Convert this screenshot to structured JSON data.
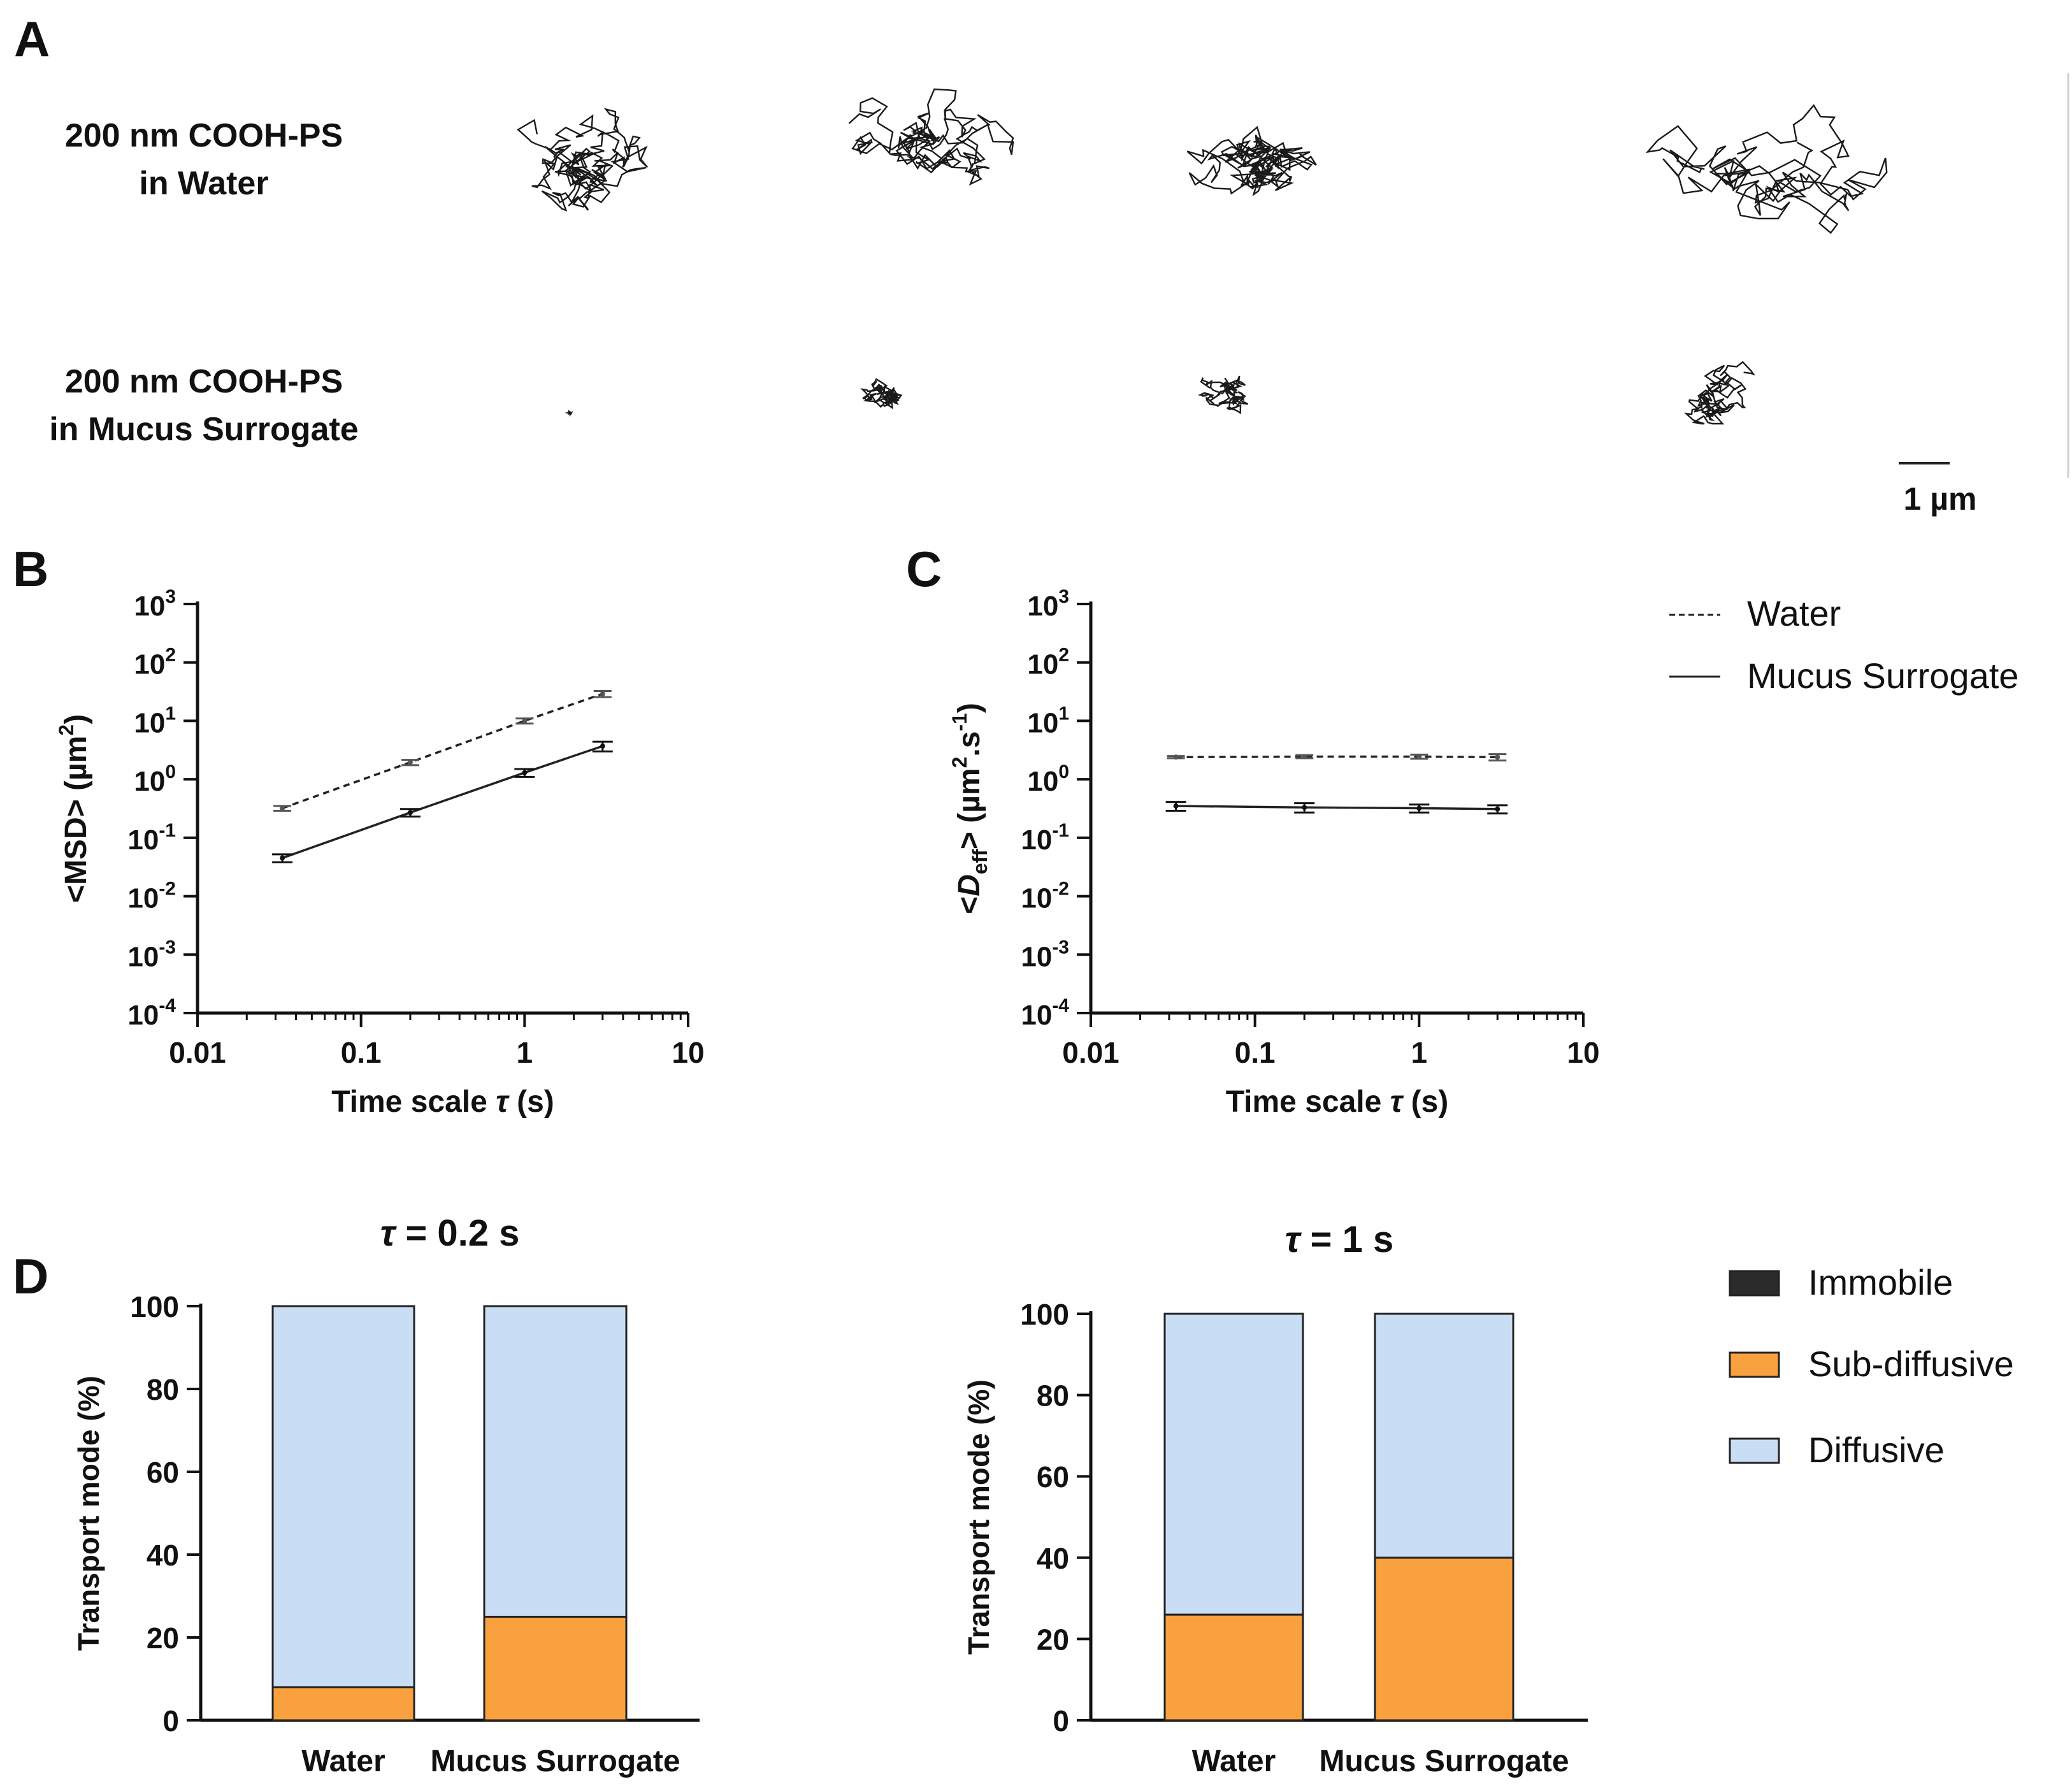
{
  "panel_letters": {
    "a": "A",
    "b": "B",
    "c": "C",
    "d": "D"
  },
  "panel_a": {
    "row1_line1": "200 nm COOH-PS",
    "row1_line2": "in Water",
    "row2_line1": "200 nm COOH-PS",
    "row2_line2": "in Mucus Surrogate",
    "scalebar_label": "1 µm"
  },
  "legend_lines": {
    "water": "Water",
    "mucus": "Mucus Surrogate"
  },
  "legend_bars": {
    "immobile": "Immobile",
    "subdiffusive": "Sub-diffusive",
    "diffusive": "Diffusive"
  },
  "colors": {
    "immobile": "#2b2b2b",
    "subdiffusive": "#f9a03f",
    "diffusive": "#c9ddf5",
    "line": "#222222"
  },
  "chart_data": [
    {
      "id": "B",
      "type": "line",
      "xscale": "log",
      "yscale": "log",
      "xlim": [
        0.01,
        10
      ],
      "ylim": [
        0.0001,
        1000
      ],
      "xticks": [
        "0.01",
        "0.1",
        "1",
        "10"
      ],
      "yticks": [
        {
          "base": "10",
          "exp": "-4"
        },
        {
          "base": "10",
          "exp": "-3"
        },
        {
          "base": "10",
          "exp": "-2"
        },
        {
          "base": "10",
          "exp": "-1"
        },
        {
          "base": "10",
          "exp": "0"
        },
        {
          "base": "10",
          "exp": "1"
        },
        {
          "base": "10",
          "exp": "2"
        },
        {
          "base": "10",
          "exp": "3"
        }
      ],
      "ylabel": {
        "pre": "<MSD> (µm",
        "sup": "2",
        "post": ")"
      },
      "xlabel": {
        "pre": "Time scale ",
        "tau": "τ",
        "post": " (s)"
      },
      "series": [
        {
          "name": "Water",
          "dash": true,
          "x": [
            0.033,
            0.2,
            1.0,
            3.0
          ],
          "y": [
            0.32,
            1.95,
            10.0,
            29.0
          ],
          "err": [
            0.03,
            0.2,
            1.0,
            3.5
          ]
        },
        {
          "name": "Mucus Surrogate",
          "dash": false,
          "x": [
            0.033,
            0.2,
            1.0,
            3.0
          ],
          "y": [
            0.045,
            0.27,
            1.3,
            3.7
          ],
          "err": [
            0.007,
            0.04,
            0.2,
            0.7
          ]
        }
      ]
    },
    {
      "id": "C",
      "type": "line",
      "xscale": "log",
      "yscale": "log",
      "xlim": [
        0.01,
        10
      ],
      "ylim": [
        0.0001,
        1000
      ],
      "xticks": [
        "0.01",
        "0.1",
        "1",
        "10"
      ],
      "yticks": [
        {
          "base": "10",
          "exp": "-4"
        },
        {
          "base": "10",
          "exp": "-3"
        },
        {
          "base": "10",
          "exp": "-2"
        },
        {
          "base": "10",
          "exp": "-1"
        },
        {
          "base": "10",
          "exp": "0"
        },
        {
          "base": "10",
          "exp": "1"
        },
        {
          "base": "10",
          "exp": "2"
        },
        {
          "base": "10",
          "exp": "3"
        }
      ],
      "ylabel": {
        "pre": "<",
        "ital": "D",
        "sub": "eff",
        "mid": "> (µm",
        "sup1": "2",
        "mid2": ".s",
        "sup2": "-1",
        "post": ")"
      },
      "xlabel": {
        "pre": "Time scale ",
        "tau": "τ",
        "post": " (s)"
      },
      "series": [
        {
          "name": "Water",
          "dash": true,
          "x": [
            0.033,
            0.2,
            1.0,
            3.0
          ],
          "y": [
            2.4,
            2.45,
            2.45,
            2.4
          ],
          "err": [
            0.1,
            0.15,
            0.2,
            0.3
          ]
        },
        {
          "name": "Mucus Surrogate",
          "dash": false,
          "x": [
            0.033,
            0.2,
            1.0,
            3.0
          ],
          "y": [
            0.35,
            0.33,
            0.32,
            0.31
          ],
          "err": [
            0.06,
            0.06,
            0.05,
            0.05
          ]
        }
      ]
    },
    {
      "id": "D1",
      "type": "bar",
      "stacked": true,
      "title": {
        "tau": "τ",
        "post": " = 0.2 s"
      },
      "categories": [
        "Water",
        "Mucus Surrogate"
      ],
      "ylabel": "Transport mode (%)",
      "ylim": [
        0,
        100
      ],
      "yticks": [
        "0",
        "20",
        "40",
        "60",
        "80",
        "100"
      ],
      "series": [
        {
          "name": "Immobile",
          "values": [
            0,
            0
          ]
        },
        {
          "name": "Sub-diffusive",
          "values": [
            8,
            25
          ]
        },
        {
          "name": "Diffusive",
          "values": [
            92,
            75
          ]
        }
      ]
    },
    {
      "id": "D2",
      "type": "bar",
      "stacked": true,
      "title": {
        "tau": "τ",
        "post": " = 1 s"
      },
      "categories": [
        "Water",
        "Mucus Surrogate"
      ],
      "ylabel": "Transport mode (%)",
      "ylim": [
        0,
        100
      ],
      "yticks": [
        "0",
        "20",
        "40",
        "60",
        "80",
        "100"
      ],
      "series": [
        {
          "name": "Immobile",
          "values": [
            0,
            0
          ]
        },
        {
          "name": "Sub-diffusive",
          "values": [
            26,
            40
          ]
        },
        {
          "name": "Diffusive",
          "values": [
            74,
            60
          ]
        }
      ]
    }
  ]
}
